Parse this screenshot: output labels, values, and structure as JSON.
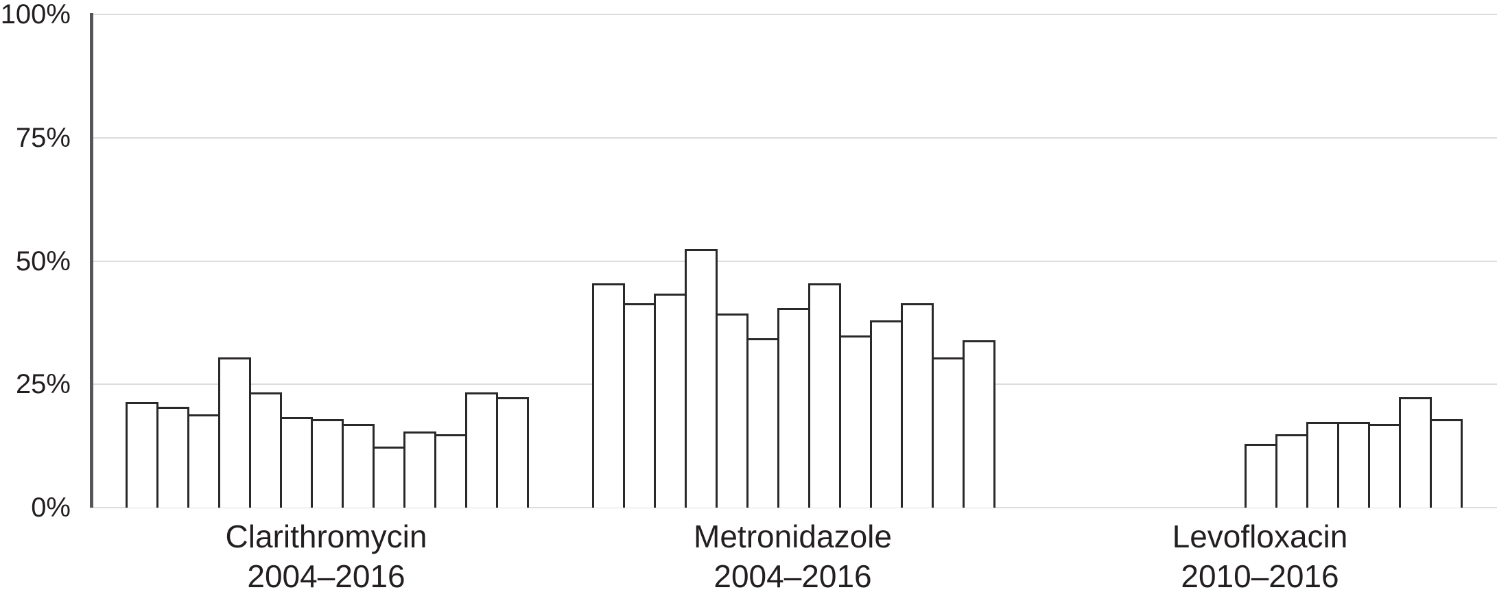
{
  "chart_data": {
    "type": "bar",
    "title": "",
    "xlabel": "",
    "ylabel": "",
    "ylim": [
      0,
      100
    ],
    "grid": true,
    "legend": "none",
    "ytick_values": [
      0,
      25,
      50,
      75,
      100
    ],
    "ytick_labels": [
      "0%",
      "25%",
      "50%",
      "75%",
      "100%"
    ],
    "bar_fill": "#ffffff",
    "bar_border": "#2b2829",
    "groups": [
      {
        "label": "Clarithromycin",
        "period": "2004–2016",
        "values": [
          21,
          20,
          18.5,
          30,
          23,
          18,
          17.5,
          16.5,
          12,
          15,
          14.5,
          23,
          22
        ]
      },
      {
        "label": "Metronidazole",
        "period": "2004–2016",
        "values": [
          45,
          41,
          43,
          52,
          39,
          34,
          40,
          45,
          34.5,
          37.5,
          41,
          30,
          33.5
        ]
      },
      {
        "label": "Levofloxacin",
        "period": "2010–2016",
        "values": [
          12.5,
          14.5,
          17,
          17,
          16.5,
          22,
          17.5
        ]
      }
    ]
  },
  "colors": {
    "background": "#ffffff",
    "gridline": "#dcdcdc",
    "axis": "#55565a",
    "text": "#231f20",
    "bar_fill": "#ffffff",
    "bar_border": "#2b2829"
  }
}
